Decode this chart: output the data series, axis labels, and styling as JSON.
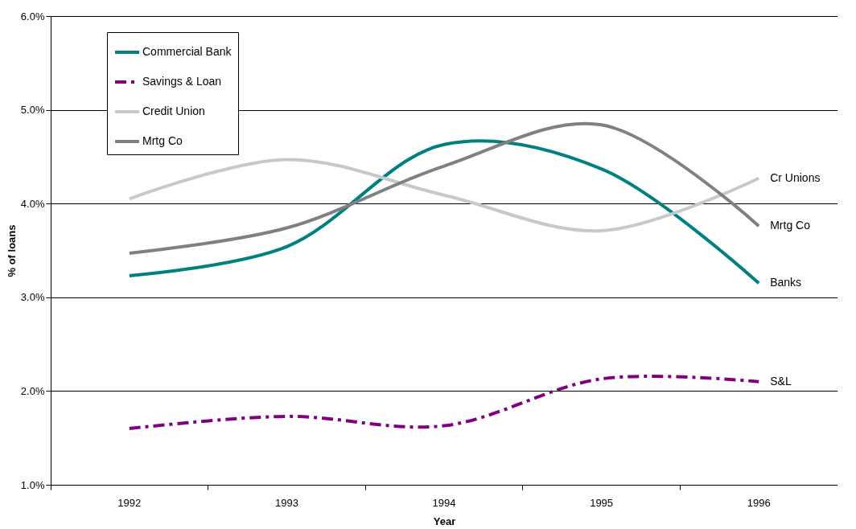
{
  "chart_data": {
    "type": "line",
    "xlabel": "Year",
    "ylabel": "% of loans",
    "categories": [
      "1992",
      "1993",
      "1994",
      "1995",
      "1996"
    ],
    "series": [
      {
        "name": "Commercial Bank",
        "color": "#008080",
        "values": [
          3.23,
          3.54,
          4.63,
          4.37,
          3.15
        ],
        "line_style": "solid"
      },
      {
        "name": "Savings & Loan",
        "color": "#800080",
        "values": [
          1.6,
          1.73,
          1.63,
          2.13,
          2.1
        ],
        "line_style": "dashed"
      },
      {
        "name": "Credit Union",
        "color": "#c8c8c8",
        "values": [
          4.05,
          4.47,
          4.09,
          3.71,
          4.27
        ],
        "line_style": "solid"
      },
      {
        "name": "Mrtg Co",
        "color": "#808080",
        "values": [
          3.47,
          3.74,
          4.4,
          4.84,
          3.76
        ],
        "line_style": "solid"
      }
    ],
    "ylim": [
      1,
      6
    ],
    "yticks": [
      {
        "value": 1,
        "label": "1.0%"
      },
      {
        "value": 2,
        "label": "2.0%"
      },
      {
        "value": 3,
        "label": "3.0%"
      },
      {
        "value": 4,
        "label": "4.0%"
      },
      {
        "value": 5,
        "label": "5.0%"
      },
      {
        "value": 6,
        "label": "6.0%"
      }
    ],
    "grid": "y",
    "legend": "top left",
    "marker": "none",
    "annotations": [
      {
        "text": "Cr Unions",
        "x": "1996",
        "y": 4.27
      },
      {
        "text": "Mrtg Co",
        "x": "1996",
        "y": 3.76
      },
      {
        "text": "Banks",
        "x": "1996",
        "y": 3.15
      },
      {
        "text": "S&L",
        "x": "1996",
        "y": 2.1
      }
    ]
  }
}
